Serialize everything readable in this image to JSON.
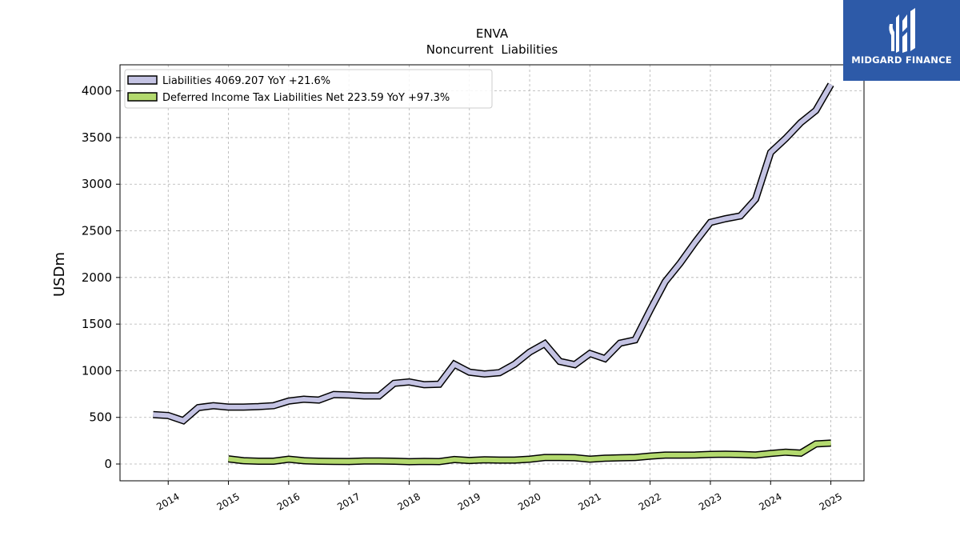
{
  "brand": {
    "name": "MIDGARD FINANCE",
    "icon": "midgard-logo-icon",
    "background_color": "#2d5aa8"
  },
  "chart_data": {
    "type": "line",
    "title": "ENVA",
    "subtitle": "Noncurrent  Liabilities",
    "ylabel": "USDm",
    "xlabel": "",
    "ylim": [
      -180,
      4280
    ],
    "xlim": [
      2013.2,
      2025.55
    ],
    "yticks": [
      0,
      500,
      1000,
      1500,
      2000,
      2500,
      3000,
      3500,
      4000
    ],
    "xticks": [
      "2014",
      "2015",
      "2016",
      "2017",
      "2018",
      "2019",
      "2020",
      "2021",
      "2022",
      "2023",
      "2024",
      "2025"
    ],
    "grid": true,
    "legend_position": "top-left",
    "series": [
      {
        "name": "Liabilities  4069.207 YoY +21.6%",
        "color": "#c4c3e3",
        "x": [
          2013.75,
          2014.0,
          2014.25,
          2014.5,
          2014.75,
          2015.0,
          2015.25,
          2015.5,
          2015.75,
          2016.0,
          2016.25,
          2016.5,
          2016.75,
          2017.0,
          2017.25,
          2017.5,
          2017.75,
          2018.0,
          2018.25,
          2018.5,
          2018.75,
          2019.0,
          2019.25,
          2019.5,
          2019.75,
          2020.0,
          2020.25,
          2020.5,
          2020.75,
          2021.0,
          2021.25,
          2021.5,
          2021.75,
          2022.0,
          2022.25,
          2022.5,
          2022.75,
          2023.0,
          2023.25,
          2023.5,
          2023.75,
          2024.0,
          2024.25,
          2024.5,
          2024.75,
          2025.0
        ],
        "y": [
          530,
          520,
          465,
          605,
          625,
          610,
          610,
          615,
          625,
          675,
          695,
          685,
          745,
          740,
          730,
          730,
          865,
          880,
          850,
          855,
          1070,
          985,
          965,
          980,
          1070,
          1200,
          1290,
          1100,
          1065,
          1185,
          1130,
          1295,
          1330,
          1650,
          1955,
          2155,
          2380,
          2590,
          2630,
          2660,
          2840,
          3340,
          3490,
          3660,
          3790,
          4069
        ]
      },
      {
        "name": "Deferred Income Tax Liabilities Net  223.59 YoY +97.3%",
        "color": "#b3d96e",
        "x": [
          2015.0,
          2015.25,
          2015.5,
          2015.75,
          2016.0,
          2016.25,
          2016.5,
          2016.75,
          2017.0,
          2017.25,
          2017.5,
          2017.75,
          2018.0,
          2018.25,
          2018.5,
          2018.75,
          2019.0,
          2019.25,
          2019.5,
          2019.75,
          2020.0,
          2020.25,
          2020.5,
          2020.75,
          2021.0,
          2021.25,
          2021.5,
          2021.75,
          2022.0,
          2022.25,
          2022.5,
          2022.75,
          2023.0,
          2023.25,
          2023.5,
          2023.75,
          2024.0,
          2024.25,
          2024.5,
          2024.75,
          2025.0
        ],
        "y": [
          55,
          35,
          30,
          30,
          52,
          35,
          30,
          28,
          27,
          33,
          33,
          30,
          25,
          28,
          26,
          48,
          38,
          45,
          42,
          42,
          52,
          70,
          70,
          68,
          52,
          62,
          67,
          70,
          85,
          95,
          95,
          97,
          103,
          105,
          102,
          97,
          113,
          127,
          117,
          215,
          224
        ]
      }
    ]
  }
}
